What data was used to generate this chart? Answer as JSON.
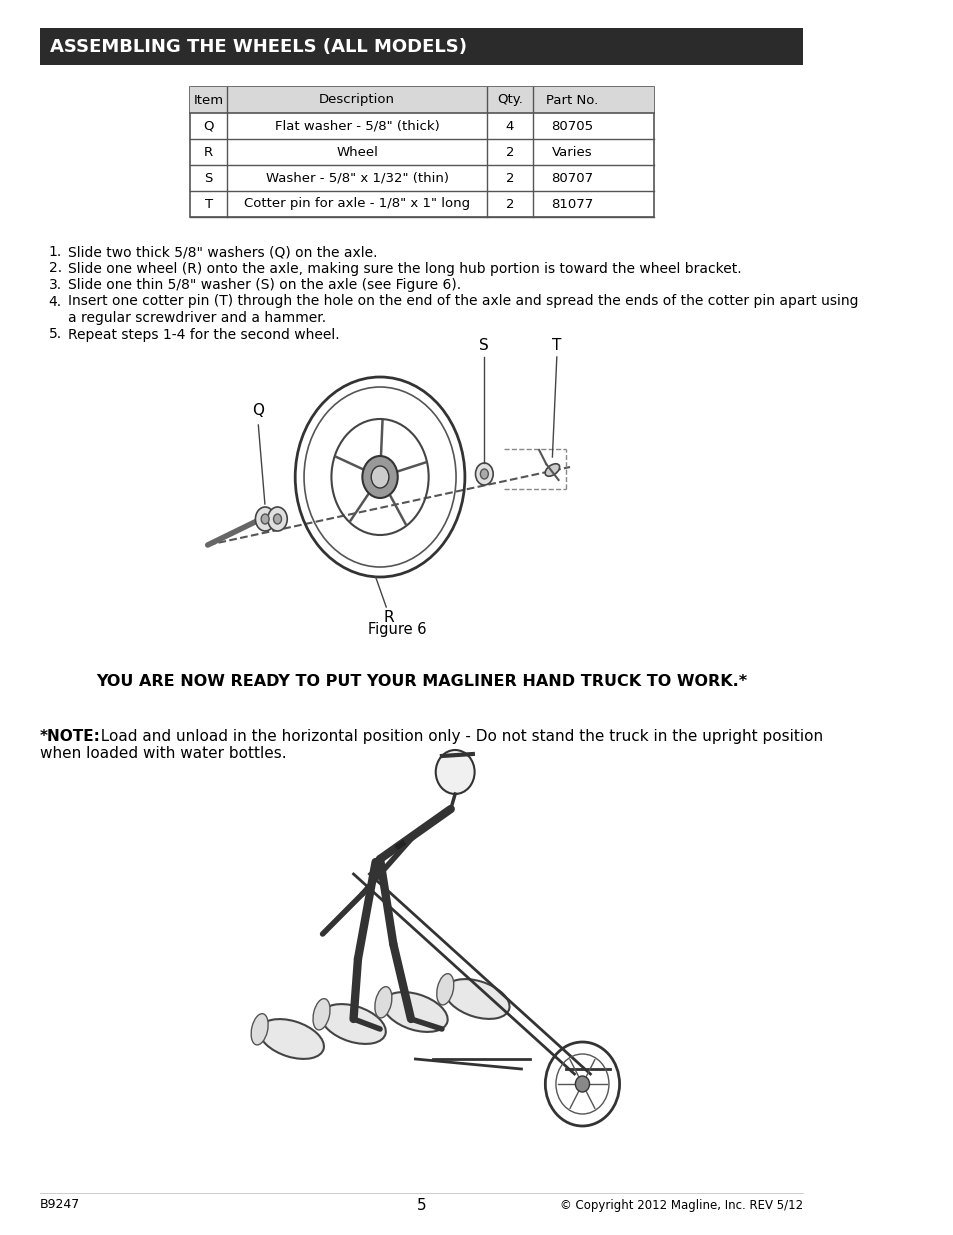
{
  "title": "ASSEMBLING THE WHEELS (ALL MODELS)",
  "title_bg": "#2b2b2b",
  "title_color": "#ffffff",
  "title_fontsize": 13,
  "page_bg": "#ffffff",
  "table_header": [
    "Item",
    "Description",
    "Qty.",
    "Part No."
  ],
  "table_rows": [
    [
      "Q",
      "Flat washer - 5/8\" (thick)",
      "4",
      "80705"
    ],
    [
      "R",
      "Wheel",
      "2",
      "Varies"
    ],
    [
      "S",
      "Washer - 5/8\" x 1/32\" (thin)",
      "2",
      "80707"
    ],
    [
      "T",
      "Cotter pin for axle - 1/8\" x 1\" long",
      "2",
      "81077"
    ]
  ],
  "table_header_bg": "#d8d8d8",
  "table_row_bg": "#ffffff",
  "table_border_color": "#555555",
  "instructions": [
    "Slide two thick 5/8\" washers (Q) on the axle.",
    "Slide one wheel (R) onto the axle, making sure the long hub portion is toward the wheel bracket.",
    "Slide one thin 5/8\" washer (S) on the axle (see Figure 6).",
    "Insert one cotter pin (T) through the hole on the end of the axle and spread the ends of the cotter pin apart using\n     a regular screwdriver and a hammer.",
    "Repeat steps 1-4 for the second wheel."
  ],
  "figure_caption": "Figure 6",
  "bold_line": "YOU ARE NOW READY TO PUT YOUR MAGLINER HAND TRUCK TO WORK.*",
  "note_bold": "*NOTE:",
  "note_text": "  Load and unload in the horizontal position only - Do not stand the truck in the upright position\nwhen loaded with water bottles.",
  "footer_left": "B9247",
  "footer_center": "5",
  "footer_right": "© Copyright 2012 Magline, Inc. REV 5/12",
  "body_fontsize": 10,
  "instruction_fontsize": 10,
  "note_fontsize": 11,
  "bold_line_fontsize": 11.5
}
